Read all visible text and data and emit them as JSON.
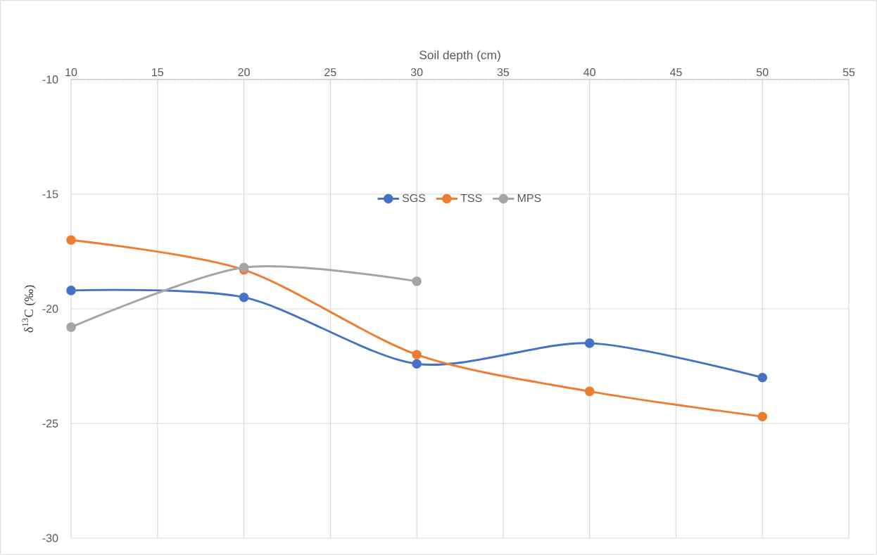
{
  "chart_data": {
    "type": "line",
    "xlabel": "Soil depth (cm)",
    "ylabel": "δ$^{13}$C (‰)",
    "x": [
      10,
      20,
      30,
      40,
      50
    ],
    "series": [
      {
        "name": "SGS",
        "color": "#4472c4",
        "values": [
          -19.2,
          -19.5,
          -22.4,
          -21.5,
          -23.0
        ]
      },
      {
        "name": "TSS",
        "color": "#ed7d31",
        "values": [
          -17.0,
          -18.3,
          -22.0,
          -23.6,
          -24.7
        ]
      },
      {
        "name": "MPS",
        "color": "#a5a5a5",
        "values": [
          -20.8,
          -18.2,
          -18.8,
          null,
          null
        ]
      }
    ],
    "xlim": [
      10,
      55
    ],
    "xticks": [
      10,
      15,
      20,
      25,
      30,
      35,
      40,
      45,
      50,
      55
    ],
    "ylim": [
      -30,
      -10
    ],
    "yticks": [
      -30,
      -25,
      -20,
      -15,
      -10
    ],
    "grid": true,
    "legend": "top",
    "marker": "circle",
    "line_style": "solid"
  }
}
